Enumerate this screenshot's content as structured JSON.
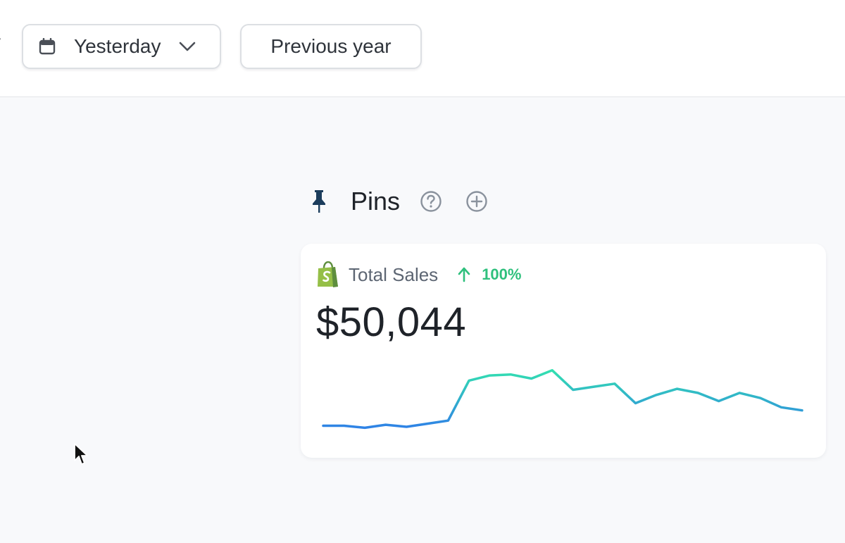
{
  "toolbar": {
    "cut_text": "y",
    "date_range": {
      "icon": "calendar-icon",
      "label": "Yesterday",
      "dropdown_icon": "chevron-down-icon"
    },
    "compare_label": "Previous year"
  },
  "pins": {
    "icon": "pin-icon",
    "title": "Pins",
    "help_icon": "question-circle-icon",
    "add_icon": "plus-circle-icon"
  },
  "card": {
    "icon": "shopify-bag-icon",
    "label": "Total Sales",
    "trend_icon": "arrow-up-icon",
    "change": "100%",
    "value": "$50,044",
    "colors": {
      "line_start": "#2f82e6",
      "line_end": "#33e0b0",
      "change": "#2fc07d"
    }
  },
  "chart_data": {
    "type": "line",
    "series": [
      {
        "values": [
          12,
          12,
          10,
          13,
          11,
          14,
          17,
          56,
          61,
          62,
          58,
          66,
          47,
          50,
          53,
          34,
          42,
          48,
          44,
          36,
          44,
          39,
          30,
          27
        ]
      }
    ],
    "ylim": [
      0,
      70
    ]
  }
}
